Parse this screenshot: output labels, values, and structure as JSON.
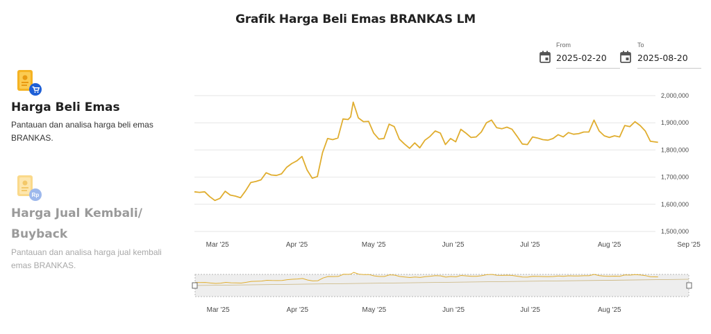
{
  "page": {
    "title": "Grafik Harga Beli Emas BRANKAS LM"
  },
  "date_range": {
    "from_label": "From",
    "from_value": "2025-02-20",
    "to_label": "To",
    "to_value": "2025-08-20"
  },
  "sidebar": {
    "items": [
      {
        "title": "Harga Beli Emas",
        "description": "Pantauan dan analisa harga beli emas BRANKAS.",
        "active": true
      },
      {
        "title": "Harga Jual Kembali/ Buyback",
        "description": "Pantauan dan analisa harga jual kembali emas BRANKAS.",
        "active": false
      }
    ]
  },
  "colors": {
    "line": "#E0AD2E",
    "grid": "#e6e6e6",
    "navigator_bg": "#eeeeee"
  },
  "chart_data": {
    "type": "line",
    "title": "Grafik Harga Beli Emas BRANKAS LM",
    "xlabel": "",
    "ylabel": "",
    "ylim": [
      1500000,
      2000000
    ],
    "xlim": [
      "2025-02-20",
      "2025-09-01"
    ],
    "y_ticks": [
      "2,000,000",
      "1,900,000",
      "1,800,000",
      "1,700,000",
      "1,600,000",
      "1,500,000"
    ],
    "x_ticks": [
      "Mar '25",
      "Apr '25",
      "May '25",
      "Jun '25",
      "Jul '25",
      "Aug '25",
      "Sep '25"
    ],
    "navigator_x_ticks": [
      "Mar '25",
      "Apr '25",
      "May '25",
      "Jun '25",
      "Jul '25",
      "Aug '25"
    ],
    "grid": true,
    "legend": "none",
    "series": [
      {
        "x": [
          "2025-02-20",
          "2025-02-22",
          "2025-02-24",
          "2025-02-26",
          "2025-02-28",
          "2025-03-02",
          "2025-03-04",
          "2025-03-06",
          "2025-03-08",
          "2025-03-10",
          "2025-03-12",
          "2025-03-14",
          "2025-03-16",
          "2025-03-18",
          "2025-03-20",
          "2025-03-22",
          "2025-03-24",
          "2025-03-26",
          "2025-03-28",
          "2025-03-30",
          "2025-04-01",
          "2025-04-03",
          "2025-04-05",
          "2025-04-07",
          "2025-04-09",
          "2025-04-11",
          "2025-04-13",
          "2025-04-15",
          "2025-04-17",
          "2025-04-19",
          "2025-04-21",
          "2025-04-22",
          "2025-04-23",
          "2025-04-25",
          "2025-04-27",
          "2025-04-29",
          "2025-05-01",
          "2025-05-03",
          "2025-05-05",
          "2025-05-07",
          "2025-05-09",
          "2025-05-11",
          "2025-05-13",
          "2025-05-15",
          "2025-05-17",
          "2025-05-19",
          "2025-05-21",
          "2025-05-23",
          "2025-05-25",
          "2025-05-27",
          "2025-05-29",
          "2025-05-31",
          "2025-06-02",
          "2025-06-04",
          "2025-06-06",
          "2025-06-08",
          "2025-06-10",
          "2025-06-12",
          "2025-06-14",
          "2025-06-16",
          "2025-06-18",
          "2025-06-20",
          "2025-06-22",
          "2025-06-24",
          "2025-06-26",
          "2025-06-28",
          "2025-06-30",
          "2025-07-02",
          "2025-07-04",
          "2025-07-06",
          "2025-07-08",
          "2025-07-10",
          "2025-07-12",
          "2025-07-14",
          "2025-07-16",
          "2025-07-18",
          "2025-07-20",
          "2025-07-22",
          "2025-07-24",
          "2025-07-26",
          "2025-07-28",
          "2025-07-30",
          "2025-08-01",
          "2025-08-03",
          "2025-08-05",
          "2025-08-07",
          "2025-08-09",
          "2025-08-11",
          "2025-08-13",
          "2025-08-15",
          "2025-08-17",
          "2025-08-20"
        ],
        "values": [
          1646000,
          1644000,
          1646000,
          1628000,
          1614000,
          1622000,
          1648000,
          1634000,
          1630000,
          1624000,
          1650000,
          1680000,
          1684000,
          1690000,
          1716000,
          1708000,
          1706000,
          1712000,
          1736000,
          1750000,
          1760000,
          1776000,
          1726000,
          1696000,
          1702000,
          1790000,
          1842000,
          1838000,
          1844000,
          1914000,
          1912000,
          1922000,
          1976000,
          1918000,
          1904000,
          1905000,
          1862000,
          1840000,
          1842000,
          1895000,
          1886000,
          1840000,
          1822000,
          1806000,
          1826000,
          1808000,
          1836000,
          1850000,
          1870000,
          1862000,
          1820000,
          1842000,
          1830000,
          1876000,
          1862000,
          1846000,
          1848000,
          1866000,
          1900000,
          1910000,
          1882000,
          1878000,
          1884000,
          1876000,
          1850000,
          1822000,
          1820000,
          1848000,
          1844000,
          1838000,
          1836000,
          1842000,
          1856000,
          1848000,
          1864000,
          1858000,
          1860000,
          1866000,
          1866000,
          1910000,
          1870000,
          1852000,
          1846000,
          1852000,
          1848000,
          1890000,
          1886000,
          1904000,
          1890000,
          1870000,
          1832000,
          1828000
        ]
      }
    ]
  }
}
